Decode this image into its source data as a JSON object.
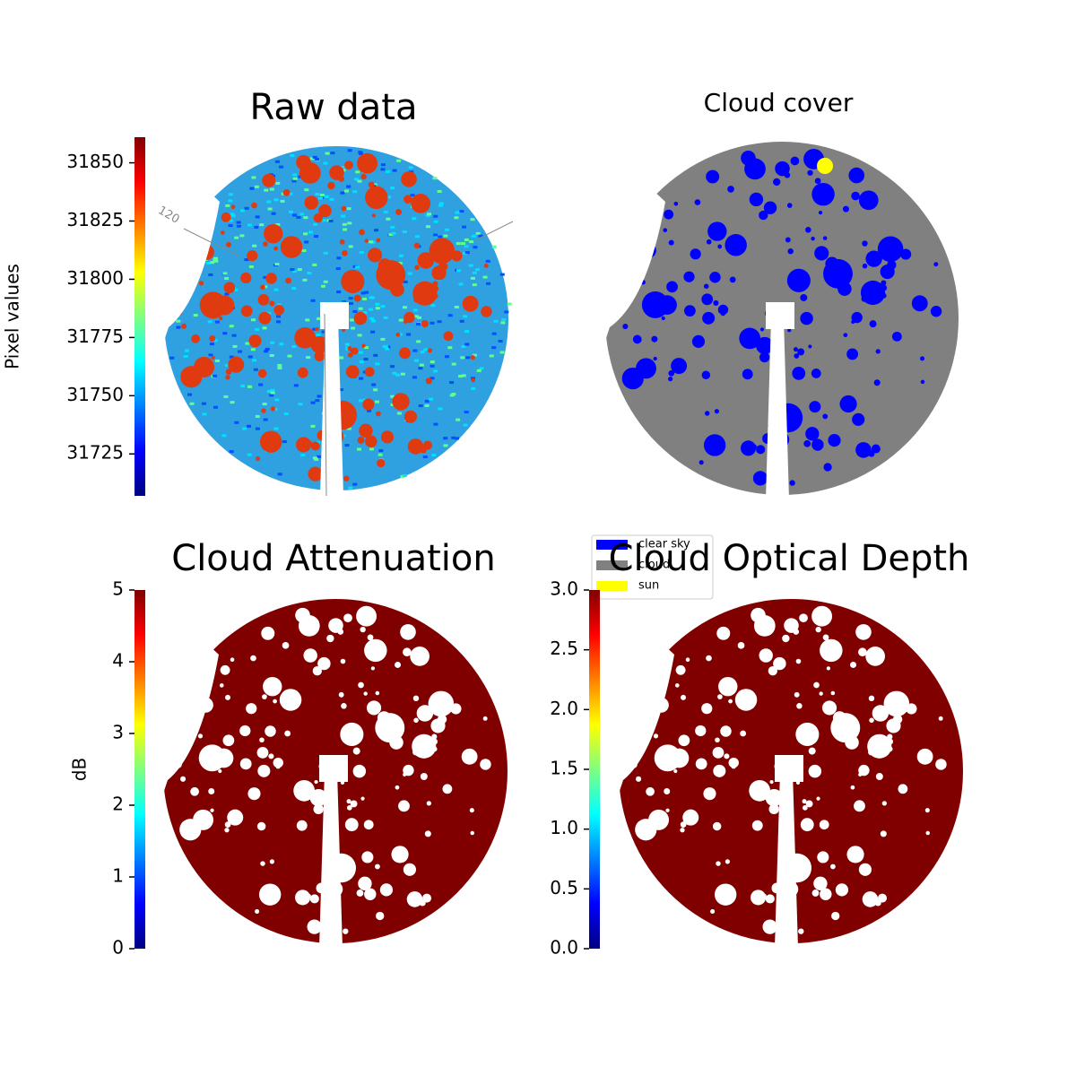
{
  "chart_data": [
    {
      "type": "image",
      "title": "Raw data",
      "colorbar": {
        "label": "Pixel values",
        "colormap": "jet",
        "ylim": [
          31707,
          31861
        ],
        "yticks": [
          31725,
          31750,
          31775,
          31800,
          31825,
          31850
        ]
      },
      "annotations": [
        "120"
      ]
    },
    {
      "type": "image",
      "title": "Cloud cover",
      "legend": [
        {
          "name": "clear sky",
          "color": "#0000ff"
        },
        {
          "name": "cloud",
          "color": "#808080"
        },
        {
          "name": "sun",
          "color": "#ffff00"
        }
      ]
    },
    {
      "type": "image",
      "title": "Cloud Attenuation",
      "colorbar": {
        "label": "dB",
        "colormap": "jet",
        "ylim": [
          0,
          5
        ],
        "yticks": [
          0,
          1,
          2,
          3,
          4,
          5
        ]
      }
    },
    {
      "type": "image",
      "title": "Cloud Optical Depth",
      "colorbar": {
        "label": null,
        "colormap": "jet",
        "ylim": [
          0,
          3
        ],
        "yticks": [
          {
            "value": 0,
            "label": "0.0"
          },
          {
            "value": 0.5,
            "label": "0.5"
          },
          {
            "value": 1,
            "label": "1.0"
          },
          {
            "value": 1.5,
            "label": "1.5"
          },
          {
            "value": 2,
            "label": "2.0"
          },
          {
            "value": 2.5,
            "label": "2.5"
          },
          {
            "value": 3,
            "label": "3.0"
          }
        ]
      }
    }
  ]
}
